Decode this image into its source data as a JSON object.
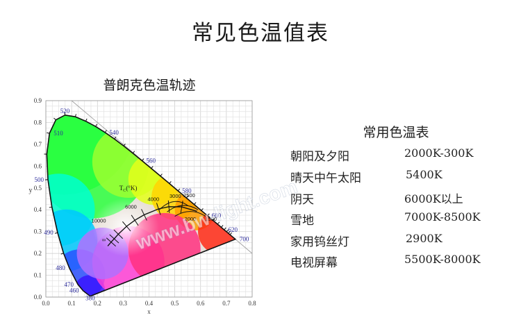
{
  "page_title": "常见色温值表",
  "chart_title": "普朗克色温轨迹",
  "chart_data": {
    "type": "scatter",
    "title": "普朗克色温轨迹",
    "xlabel": "x",
    "ylabel": "y",
    "xlim": [
      0,
      0.8
    ],
    "ylim": [
      0,
      0.9
    ],
    "grid": true,
    "x_ticks": [
      "0.0",
      "0.1",
      "0.2",
      "0.3",
      "0.4",
      "0.5",
      "0.6",
      "0.7",
      "0.8"
    ],
    "y_ticks": [
      "0.0",
      "0.1",
      "0.2",
      "0.3",
      "0.4",
      "0.5",
      "0.6",
      "0.7",
      "0.8",
      "0.9"
    ],
    "locus_label": "T",
    "locus_label_sub": "C",
    "locus_label_unit": "(°K)",
    "spectral_locus_labels": [
      {
        "text": "380",
        "x": 0.174,
        "y": 0.005
      },
      {
        "text": "460",
        "x": 0.144,
        "y": 0.03
      },
      {
        "text": "470",
        "x": 0.124,
        "y": 0.058
      },
      {
        "text": "480",
        "x": 0.091,
        "y": 0.133
      },
      {
        "text": "490",
        "x": 0.045,
        "y": 0.295
      },
      {
        "text": "500",
        "x": 0.008,
        "y": 0.538
      },
      {
        "text": "510",
        "x": 0.014,
        "y": 0.75
      },
      {
        "text": "520",
        "x": 0.074,
        "y": 0.834
      },
      {
        "text": "540",
        "x": 0.23,
        "y": 0.754
      },
      {
        "text": "560",
        "x": 0.373,
        "y": 0.625
      },
      {
        "text": "580",
        "x": 0.512,
        "y": 0.487
      },
      {
        "text": "600",
        "x": 0.627,
        "y": 0.373
      },
      {
        "text": "620",
        "x": 0.691,
        "y": 0.308
      },
      {
        "text": "700",
        "x": 0.735,
        "y": 0.265
      }
    ],
    "planckian_locus": [
      {
        "x": 0.24,
        "y": 0.234
      },
      {
        "x": 0.253,
        "y": 0.252
      },
      {
        "x": 0.265,
        "y": 0.267
      },
      {
        "x": 0.281,
        "y": 0.288
      },
      {
        "x": 0.313,
        "y": 0.324
      },
      {
        "x": 0.345,
        "y": 0.352
      },
      {
        "x": 0.381,
        "y": 0.377
      },
      {
        "x": 0.437,
        "y": 0.404
      },
      {
        "x": 0.477,
        "y": 0.414
      },
      {
        "x": 0.527,
        "y": 0.413
      },
      {
        "x": 0.586,
        "y": 0.393
      }
    ],
    "temperature_labels": [
      {
        "text": "∞",
        "x": 0.225,
        "y": 0.255
      },
      {
        "text": "10000",
        "x": 0.205,
        "y": 0.342
      },
      {
        "text": "6000",
        "x": 0.33,
        "y": 0.405
      },
      {
        "text": "4000",
        "x": 0.417,
        "y": 0.44
      },
      {
        "text": "3000",
        "x": 0.502,
        "y": 0.455
      },
      {
        "text": "2500",
        "x": 0.556,
        "y": 0.458
      },
      {
        "text": "2000",
        "x": 0.56,
        "y": 0.35
      },
      {
        "text": "1500",
        "x": 0.64,
        "y": 0.35
      }
    ]
  },
  "table": {
    "title": "常用色温表",
    "rows": [
      {
        "name": "朝阳及夕阳",
        "value": "2000K-300K"
      },
      {
        "name": "晴天中午太阳",
        "value": "5400K"
      },
      {
        "name": "阴天",
        "value": "6000K以上"
      },
      {
        "name": "雪地",
        "value": "7000K-8500K"
      },
      {
        "name": "家用钨丝灯",
        "value": "2900K"
      },
      {
        "name": "电视屏幕",
        "value": "5500K-8000K"
      }
    ]
  },
  "watermark": "www.bw-light.com"
}
